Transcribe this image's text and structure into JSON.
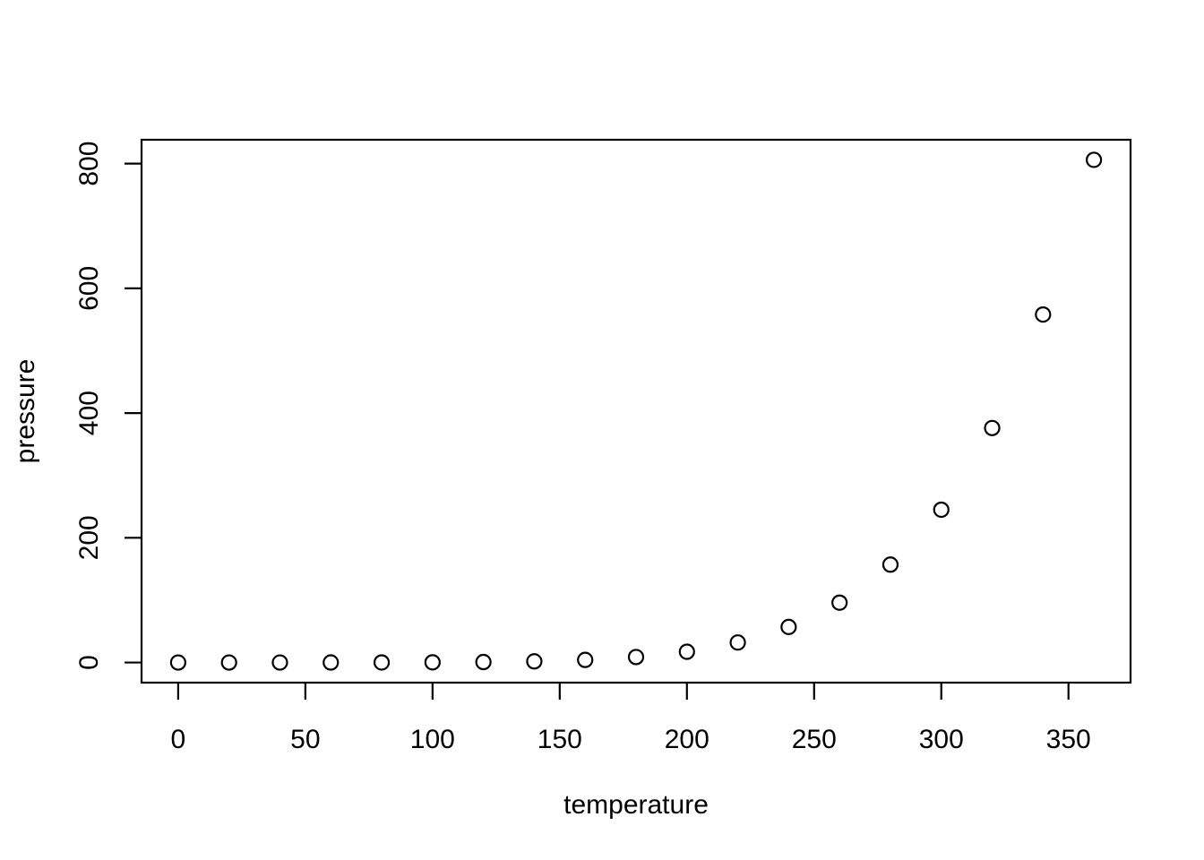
{
  "figure": {
    "background": "#ffffff",
    "foreground": "#000000"
  },
  "chart_data": {
    "type": "scatter",
    "title": "",
    "xlabel": "temperature",
    "ylabel": "pressure",
    "x": [
      0,
      20,
      40,
      60,
      80,
      100,
      120,
      140,
      160,
      180,
      200,
      220,
      240,
      260,
      280,
      300,
      320,
      340,
      360
    ],
    "y": [
      0.0002,
      0.0012,
      0.006,
      0.03,
      0.09,
      0.27,
      0.75,
      1.85,
      4.2,
      8.8,
      17.3,
      32.1,
      57,
      96,
      157,
      245,
      376,
      558,
      806
    ],
    "xticks": [
      0,
      50,
      100,
      150,
      200,
      250,
      300,
      350
    ],
    "yticks": [
      0,
      200,
      400,
      600,
      800
    ],
    "xlim": [
      0,
      360
    ],
    "ylim": [
      0,
      806
    ],
    "grid": false,
    "legend": "none",
    "marker": "open-circle",
    "marker_color": "#000000"
  }
}
